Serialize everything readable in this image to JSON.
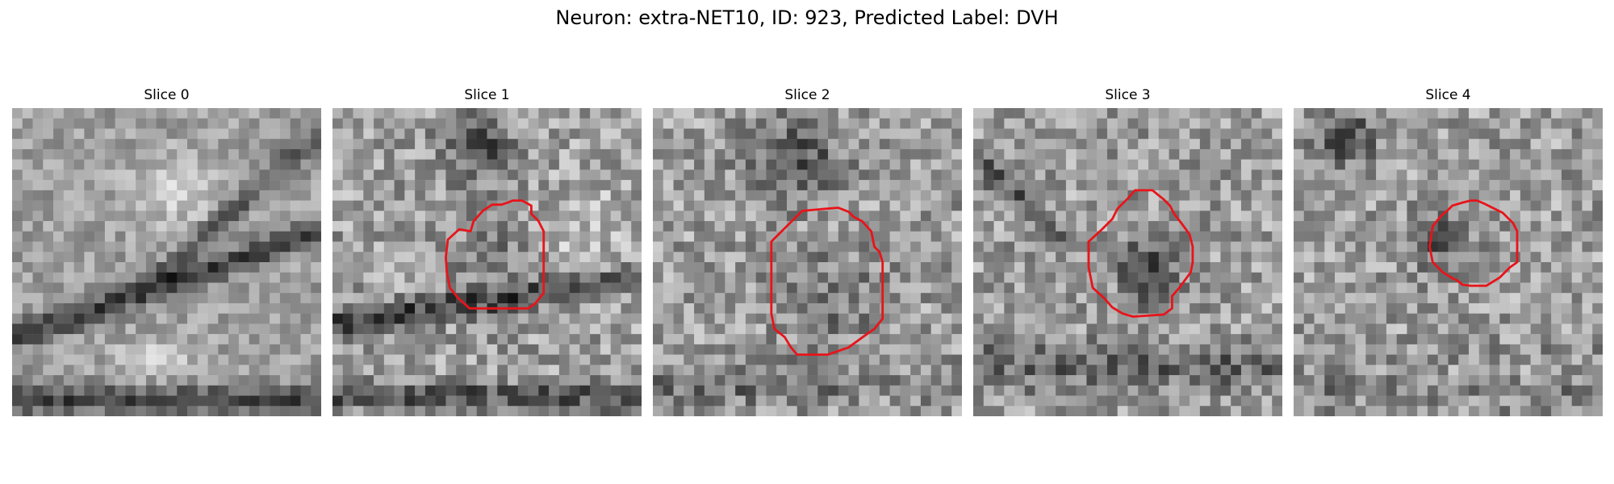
{
  "figure": {
    "title": "Neuron: extra-NET10, ID: 923, Predicted Label: DVH"
  },
  "panels": [
    {
      "title": "Slice 0",
      "has_contour": false
    },
    {
      "title": "Slice 1",
      "has_contour": true
    },
    {
      "title": "Slice 2",
      "has_contour": true
    },
    {
      "title": "Slice 3",
      "has_contour": true
    },
    {
      "title": "Slice 4",
      "has_contour": true
    }
  ],
  "colors": {
    "contour": "#e8141a",
    "background": "#ffffff"
  },
  "image_style": "grayscale-pixel-grid"
}
